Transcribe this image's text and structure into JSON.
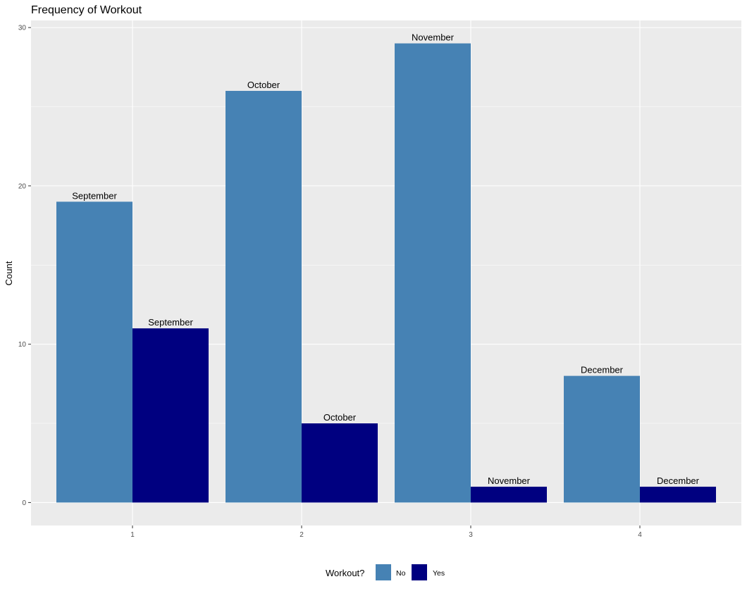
{
  "chart_data": {
    "type": "bar",
    "title": "Frequency of Workout",
    "xlabel": "",
    "ylabel": "Count",
    "categories": [
      "1",
      "2",
      "3",
      "4"
    ],
    "yticks": [
      0,
      10,
      20,
      30
    ],
    "ylim": [
      -1.45,
      30.45
    ],
    "grid": true,
    "series": [
      {
        "name": "No",
        "color": "#4682B4",
        "values": [
          19,
          26,
          29,
          8
        ],
        "labels": [
          "September",
          "October",
          "November",
          "December"
        ]
      },
      {
        "name": "Yes",
        "color": "#000080",
        "values": [
          11,
          5,
          1,
          1
        ],
        "labels": [
          "September",
          "October",
          "November",
          "December"
        ]
      }
    ],
    "legend": {
      "title": "Workout?",
      "position": "bottom"
    }
  }
}
